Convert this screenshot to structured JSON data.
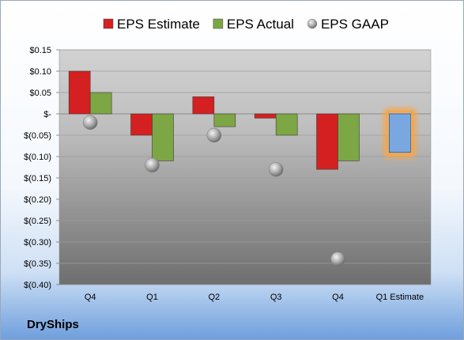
{
  "company": "DryShips",
  "chart_data": {
    "type": "bar",
    "categories": [
      "Q4",
      "Q1",
      "Q2",
      "Q3",
      "Q4",
      "Q1 Estimate"
    ],
    "series": [
      {
        "name": "EPS Estimate",
        "type": "bar",
        "color": "#d42020",
        "values": [
          0.1,
          -0.05,
          0.04,
          -0.01,
          -0.13,
          null
        ]
      },
      {
        "name": "EPS Actual",
        "type": "bar",
        "color": "#7da644",
        "values": [
          0.05,
          -0.11,
          -0.03,
          -0.05,
          -0.11,
          -0.09
        ]
      },
      {
        "name": "EPS GAAP",
        "type": "scatter",
        "color": "#a7a7a7",
        "values": [
          -0.02,
          -0.12,
          -0.05,
          -0.13,
          -0.34,
          null
        ]
      }
    ],
    "highlight": {
      "category_index": 5,
      "color": "#7aa7e0",
      "glow": "#f5a64a"
    },
    "ylim": [
      -0.4,
      0.15
    ],
    "yticks": [
      0.15,
      0.1,
      0.05,
      0.0,
      -0.05,
      -0.1,
      -0.15,
      -0.2,
      -0.25,
      -0.3,
      -0.35,
      -0.4
    ],
    "ytick_labels": [
      "$0.15",
      "$0.10",
      "$0.05",
      "$-",
      "$(0.05)",
      "$(0.10)",
      "$(0.15)",
      "$(0.20)",
      "$(0.25)",
      "$(0.30)",
      "$(0.35)",
      "$(0.40)"
    ],
    "grid": true,
    "legend_position": "top"
  }
}
